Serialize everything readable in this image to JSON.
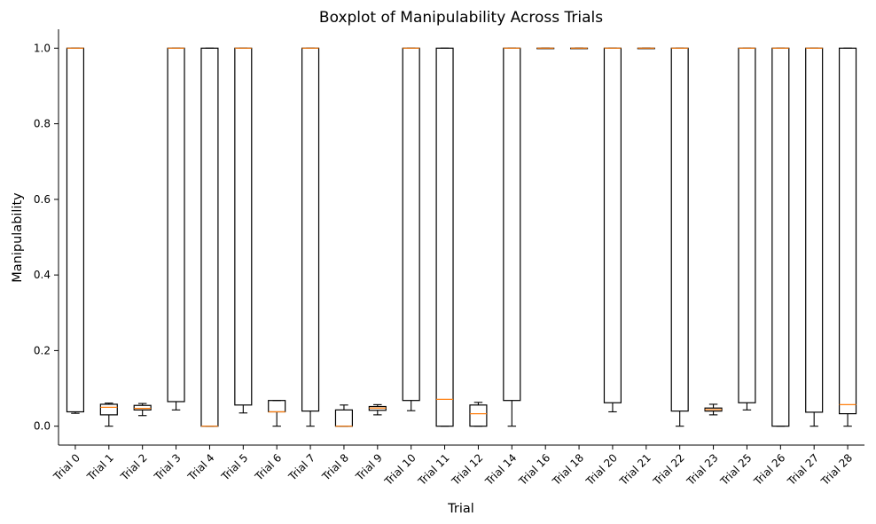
{
  "chart_data": {
    "type": "boxplot",
    "title": "Boxplot of Manipulability Across Trials",
    "xlabel": "Trial",
    "ylabel": "Manipulability",
    "ylim": [
      -0.05,
      1.05
    ],
    "yticks": [
      0.0,
      0.2,
      0.4,
      0.6,
      0.8,
      1.0
    ],
    "ytick_labels": [
      "0.0",
      "0.2",
      "0.4",
      "0.6",
      "0.8",
      "1.0"
    ],
    "grid": false,
    "colors": {
      "box": "#000000",
      "median": "#ff7f0e"
    },
    "categories": [
      "Trial 0",
      "Trial 1",
      "Trial 2",
      "Trial 3",
      "Trial 4",
      "Trial 5",
      "Trial 6",
      "Trial 7",
      "Trial 8",
      "Trial 9",
      "Trial 10",
      "Trial 11",
      "Trial 12",
      "Trial 14",
      "Trial 16",
      "Trial 18",
      "Trial 20",
      "Trial 21",
      "Trial 22",
      "Trial 23",
      "Trial 25",
      "Trial 26",
      "Trial 27",
      "Trial 28"
    ],
    "boxes": [
      {
        "whislo": 0.034,
        "q1": 0.038,
        "med": 1.0,
        "q3": 1.0,
        "whishi": 1.0
      },
      {
        "whislo": 0.0,
        "q1": 0.03,
        "med": 0.05,
        "q3": 0.058,
        "whishi": 0.061
      },
      {
        "whislo": 0.028,
        "q1": 0.043,
        "med": 0.047,
        "q3": 0.055,
        "whishi": 0.06
      },
      {
        "whislo": 0.043,
        "q1": 0.065,
        "med": 1.0,
        "q3": 1.0,
        "whishi": 1.0
      },
      {
        "whislo": 0.0,
        "q1": 0.0,
        "med": 0.0,
        "q3": 1.0,
        "whishi": 1.0
      },
      {
        "whislo": 0.035,
        "q1": 0.056,
        "med": 1.0,
        "q3": 1.0,
        "whishi": 1.0
      },
      {
        "whislo": 0.0,
        "q1": 0.038,
        "med": 0.038,
        "q3": 0.068,
        "whishi": 0.068
      },
      {
        "whislo": 0.0,
        "q1": 0.04,
        "med": 1.0,
        "q3": 1.0,
        "whishi": 1.0
      },
      {
        "whislo": 0.0,
        "q1": 0.0,
        "med": 0.0,
        "q3": 0.043,
        "whishi": 0.056
      },
      {
        "whislo": 0.03,
        "q1": 0.042,
        "med": 0.048,
        "q3": 0.052,
        "whishi": 0.057
      },
      {
        "whislo": 0.041,
        "q1": 0.068,
        "med": 1.0,
        "q3": 1.0,
        "whishi": 1.0
      },
      {
        "whislo": 0.0,
        "q1": 0.0,
        "med": 0.071,
        "q3": 1.0,
        "whishi": 1.0
      },
      {
        "whislo": 0.0,
        "q1": 0.0,
        "med": 0.033,
        "q3": 0.056,
        "whishi": 0.063
      },
      {
        "whislo": 0.0,
        "q1": 0.068,
        "med": 1.0,
        "q3": 1.0,
        "whishi": 1.0
      },
      {
        "whislo": 1.0,
        "q1": 1.0,
        "med": 1.0,
        "q3": 1.0,
        "whishi": 1.0
      },
      {
        "whislo": 1.0,
        "q1": 1.0,
        "med": 1.0,
        "q3": 1.0,
        "whishi": 1.0
      },
      {
        "whislo": 0.038,
        "q1": 0.062,
        "med": 1.0,
        "q3": 1.0,
        "whishi": 1.0
      },
      {
        "whislo": 1.0,
        "q1": 1.0,
        "med": 1.0,
        "q3": 1.0,
        "whishi": 1.0
      },
      {
        "whislo": 0.0,
        "q1": 0.04,
        "med": 1.0,
        "q3": 1.0,
        "whishi": 1.0
      },
      {
        "whislo": 0.03,
        "q1": 0.04,
        "med": 0.044,
        "q3": 0.048,
        "whishi": 0.058
      },
      {
        "whislo": 0.043,
        "q1": 0.062,
        "med": 1.0,
        "q3": 1.0,
        "whishi": 1.0
      },
      {
        "whislo": 0.0,
        "q1": 0.0,
        "med": 1.0,
        "q3": 1.0,
        "whishi": 1.0
      },
      {
        "whislo": 0.0,
        "q1": 0.037,
        "med": 1.0,
        "q3": 1.0,
        "whishi": 1.0
      },
      {
        "whislo": 0.0,
        "q1": 0.033,
        "med": 0.057,
        "q3": 1.0,
        "whishi": 1.0
      }
    ]
  }
}
